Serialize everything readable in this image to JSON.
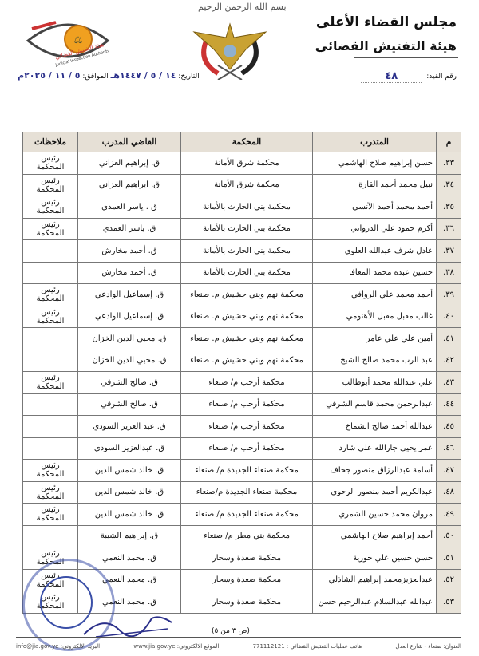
{
  "header": {
    "basmala": "بسم الله الرحمن الرحيم",
    "org_line1": "مجلس القضاء الأعلى",
    "org_line2": "هيئة التفتيش القضائي",
    "logo_text_ar": "هيئة التفتيش القضائي",
    "logo_text_en": "Judicial Inspection Authority",
    "ref_label": "رقم القيد:",
    "ref_value": "٤٨",
    "date_label": "التاريخ:",
    "date_hijri": "١٤ / ٥ / ١٤٤٧هـ",
    "date_sep": "الموافق:",
    "date_gregorian": "٥ / ١١ / ٢٠٢٥م"
  },
  "table": {
    "headers": [
      "م",
      "المتدرب",
      "المحكمة",
      "القاضي المدرب",
      "ملاحظات"
    ],
    "rows": [
      {
        "n": "٣٣.",
        "trainee": "حسن إبراهيم صلاح الهاشمي",
        "court": "محكمة شرق الأمانة",
        "judge": "ق. إبراهيم العزاني",
        "notes": "رئيس المحكمة"
      },
      {
        "n": "٣٤.",
        "trainee": "نبيل محمد أحمد القارة",
        "court": "محكمة شرق الأمانة",
        "judge": "ق. ابراهيم العزاني",
        "notes": "رئيس المحكمة"
      },
      {
        "n": "٣٥.",
        "trainee": "أحمد محمد أحمد الآنسي",
        "court": "محكمة بني الحارث بالأمانة",
        "judge": "ق . ياسر العمدي",
        "notes": "رئيس المحكمة"
      },
      {
        "n": "٣٦.",
        "trainee": "أكرم حمود علي الدرواني",
        "court": "محكمة بني الحارث بالأمانة",
        "judge": "ق. ياسر العمدي",
        "notes": "رئيس المحكمة"
      },
      {
        "n": "٣٧.",
        "trainee": "عادل شرف عبدالله العلوي",
        "court": "محكمة بني الحارث بالأمانة",
        "judge": "ق. أحمد مخارش",
        "notes": ""
      },
      {
        "n": "٣٨.",
        "trainee": "حسين عبده محمد المعافا",
        "court": "محكمة بني الحارث بالأمانة",
        "judge": "ق. أحمد مخارش",
        "notes": ""
      },
      {
        "n": "٣٩.",
        "trainee": "أحمد محمد علي الروافي",
        "court": "محكمة نهم وبني حشيش م. صنعاء",
        "judge": "ق. إسماعيل الوادعي",
        "notes": "رئيس المحكمة"
      },
      {
        "n": "٤٠.",
        "trainee": "غالب مقبل مقبل الأهنومي",
        "court": "محكمة نهم وبني حشيش م. صنعاء",
        "judge": "ق. إسماعيل الوادعي",
        "notes": "رئيس المحكمة"
      },
      {
        "n": "٤١.",
        "trainee": "أمين علي علي عامر",
        "court": "محكمة نهم وبني حشيش م. صنعاء",
        "judge": "ق. محيي الدين الخزان",
        "notes": ""
      },
      {
        "n": "٤٢.",
        "trainee": "عبد الرب محمد صالح الشيخ",
        "court": "محكمة نهم وبني حشيش م. صنعاء",
        "judge": "ق. محيي الدين الخزان",
        "notes": ""
      },
      {
        "n": "٤٣.",
        "trainee": "علي عبدالله محمد أبوطالب",
        "court": "محكمة أرحب م/ صنعاء",
        "judge": "ق. صالح الشرقي",
        "notes": "رئيس المحكمة"
      },
      {
        "n": "٤٤.",
        "trainee": "عبدالرحمن محمد قاسم الشرفي",
        "court": "محكمة أرحب م/ صنعاء",
        "judge": "ق. صالح الشرقي",
        "notes": ""
      },
      {
        "n": "٤٥.",
        "trainee": "عبدالله أحمد صالح الشماخ",
        "court": "محكمة أرحب م/ صنعاء",
        "judge": "ق. عبد العزيز السودي",
        "notes": ""
      },
      {
        "n": "٤٦.",
        "trainee": "عمر يحيى جارالله علي شارد",
        "court": "محكمة أرحب م/ صنعاء",
        "judge": "ق. عبدالعزيز السودي",
        "notes": ""
      },
      {
        "n": "٤٧.",
        "trainee": "أسامة عبدالرزاق منصور جحاف",
        "court": "محكمة صنعاء الجديدة م/ صنعاء",
        "judge": "ق. خالد شمس الدين",
        "notes": "رئيس المحكمة"
      },
      {
        "n": "٤٨.",
        "trainee": "عبدالكريم أحمد منصور الرحوي",
        "court": "محكمة صنعاء الجديدة م/صنعاء",
        "judge": "ق. خالد شمس الدين",
        "notes": "رئيس المحكمة"
      },
      {
        "n": "٤٩.",
        "trainee": "مروان محمد حسين الشمري",
        "court": "محكمة صنعاء الجديدة م/ صنعاء",
        "judge": "ق. خالد شمس الدين",
        "notes": "رئيس المحكمة"
      },
      {
        "n": "٥٠.",
        "trainee": "أحمد إبراهيم صلاح الهاشمي",
        "court": "محكمة بني مطر م/ صنعاء",
        "judge": "ق. إبراهيم الشيبة",
        "notes": ""
      },
      {
        "n": "٥١.",
        "trainee": "حسن حسين علي حورية",
        "court": "محكمة صعدة وسحار",
        "judge": "ق. محمد النعمي",
        "notes": "رئيس المحكمة"
      },
      {
        "n": "٥٢.",
        "trainee": "عبدالعزيزمحمد إبراهيم الشاذلي",
        "court": "محكمة صعدة وسحار",
        "judge": "ق. محمد النعمي",
        "notes": "رئيس المحكمة"
      },
      {
        "n": "٥٣.",
        "trainee": "عبدالله عبدالسلام عبدالرحيم حسن",
        "court": "محكمة صعدة وسحار",
        "judge": "ق. محمد النعمي",
        "notes": "رئيس المحكمة"
      }
    ]
  },
  "page_indicator": "(ص ٣ من ٥)",
  "footer": {
    "address": "العنوان: صنعاء - شارع العدل",
    "phone": "هاتف عمليات التفتيش القضائي : 771112121",
    "website": "الموقع الالكتروني: www.jia.gov.ye",
    "email": "البريد الالكتروني: info@jia.gov.ye"
  },
  "colors": {
    "ink_blue": "#2a2f8a",
    "stamp_blue": "#3a4fa8",
    "header_bg": "#e6e0d6"
  }
}
